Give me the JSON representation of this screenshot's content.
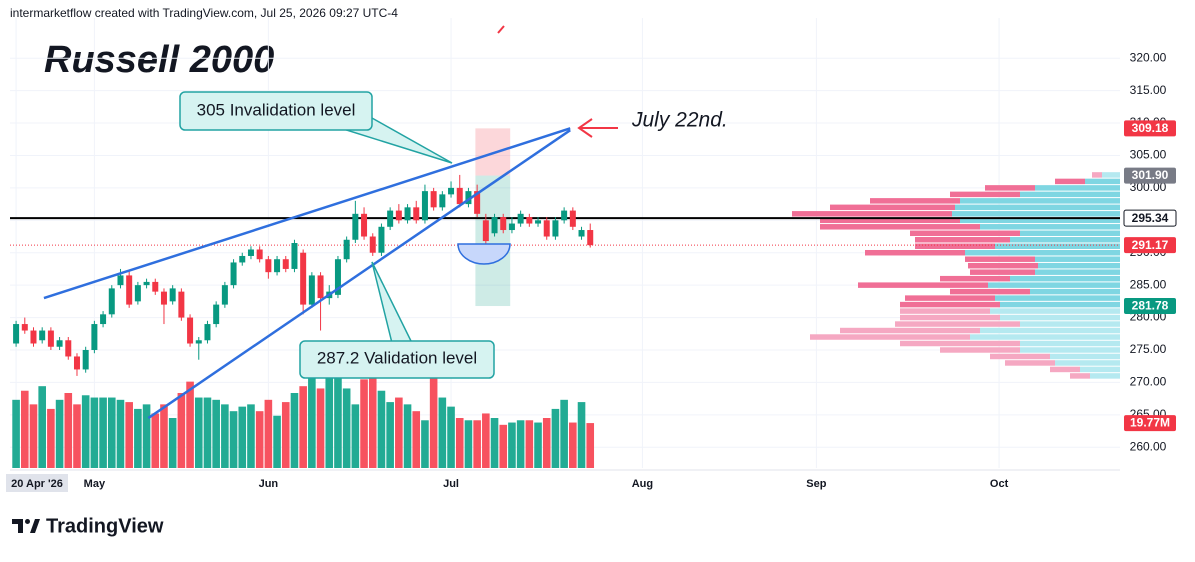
{
  "header": "intermarketflow created with TradingView.com, Jul 25, 2026 09:27 UTC-4",
  "footer": "TradingView",
  "chart_data": {
    "type": "candlestick",
    "title": "Russell 2000",
    "annotations": [
      "305 Invalidation level",
      "287.2 Validation level",
      "July 22nd."
    ],
    "xlim": [
      -0.7,
      126.9
    ],
    "xticks": [
      {
        "value": 0,
        "label": "20 Apr '26"
      },
      {
        "value": 9,
        "label": "May"
      },
      {
        "value": 29,
        "label": "Jun"
      },
      {
        "value": 50,
        "label": "Jul"
      },
      {
        "value": 72,
        "label": "Aug"
      },
      {
        "value": 92,
        "label": "Sep"
      },
      {
        "value": 113,
        "label": "Oct"
      }
    ],
    "ylim": [
      256.8,
      326.2
    ],
    "yticks": [
      {
        "value": 260,
        "label": "260.00"
      },
      {
        "value": 265,
        "label": "265.00"
      },
      {
        "value": 270,
        "label": "270.00"
      },
      {
        "value": 275,
        "label": "275.00"
      },
      {
        "value": 280,
        "label": "280.00"
      },
      {
        "value": 285,
        "label": "285.00"
      },
      {
        "value": 290,
        "label": "290.00"
      },
      {
        "value": 295,
        "label": "295.00"
      },
      {
        "value": 300,
        "label": "300.00"
      },
      {
        "value": 305,
        "label": "305.00"
      },
      {
        "value": 310,
        "label": "310.00"
      },
      {
        "value": 315,
        "label": "315.00"
      },
      {
        "value": 320,
        "label": "320.00"
      }
    ],
    "up_color": "#089981",
    "down_color": "#f23645",
    "ohlc": [
      [
        276,
        279.5,
        275.5,
        279
      ],
      [
        279,
        280,
        277.5,
        278
      ],
      [
        278,
        278.5,
        275.5,
        276
      ],
      [
        276.5,
        278.5,
        276,
        278
      ],
      [
        278,
        278.5,
        275,
        275.5
      ],
      [
        275.5,
        277,
        275,
        276.5
      ],
      [
        276.5,
        277,
        273.5,
        274
      ],
      [
        274,
        274.5,
        271,
        272
      ],
      [
        272,
        275.5,
        271.5,
        275
      ],
      [
        275,
        279.5,
        274.5,
        279
      ],
      [
        279,
        281,
        278.5,
        280.5
      ],
      [
        280.5,
        285,
        280,
        284.5
      ],
      [
        285,
        287.5,
        284.5,
        286.5
      ],
      [
        286.5,
        287.3,
        281.5,
        282
      ],
      [
        282.5,
        285.5,
        282,
        285
      ],
      [
        285,
        286,
        284.5,
        285.5
      ],
      [
        285.5,
        286,
        283.5,
        284
      ],
      [
        284,
        284.5,
        279,
        282
      ],
      [
        282.5,
        285,
        282,
        284.5
      ],
      [
        284,
        284.5,
        279.5,
        280
      ],
      [
        280,
        280.5,
        275.5,
        276
      ],
      [
        276,
        277,
        273.5,
        276.5
      ],
      [
        276.5,
        279.5,
        276,
        279
      ],
      [
        279,
        282.5,
        278.5,
        282
      ],
      [
        282,
        285.5,
        281.5,
        285
      ],
      [
        285,
        289,
        284.5,
        288.5
      ],
      [
        288.5,
        290,
        288,
        289.5
      ],
      [
        289.5,
        291,
        289,
        290.5
      ],
      [
        290.5,
        291,
        288.5,
        289
      ],
      [
        289,
        289.5,
        286,
        287
      ],
      [
        287,
        289.5,
        286.5,
        289
      ],
      [
        289,
        289.5,
        287,
        287.5
      ],
      [
        287.5,
        292,
        287,
        291.5
      ],
      [
        290,
        290.5,
        280.5,
        282
      ],
      [
        282,
        287,
        281.5,
        286.5
      ],
      [
        286.5,
        287,
        278,
        283
      ],
      [
        283,
        285,
        282,
        284
      ],
      [
        283.5,
        289.5,
        283,
        289
      ],
      [
        289,
        292.5,
        288.5,
        292
      ],
      [
        292,
        298,
        291.5,
        296
      ],
      [
        296,
        297,
        292,
        292.5
      ],
      [
        292.5,
        293,
        289.5,
        290
      ],
      [
        290,
        294.5,
        289.5,
        294
      ],
      [
        294,
        297,
        293.5,
        296.5
      ],
      [
        296.5,
        297.5,
        294.5,
        295
      ],
      [
        295,
        297.5,
        294.5,
        297
      ],
      [
        297,
        298,
        294.5,
        295
      ],
      [
        295,
        300.5,
        294.5,
        299.5
      ],
      [
        299.5,
        300,
        296.5,
        297
      ],
      [
        297,
        299.5,
        296.5,
        299
      ],
      [
        299,
        301,
        298.5,
        300
      ],
      [
        300,
        302,
        297,
        297.5
      ],
      [
        297.5,
        300,
        297,
        299.5
      ],
      [
        299.5,
        300.5,
        295.5,
        296
      ],
      [
        295,
        296,
        291.3,
        291.8
      ],
      [
        293,
        296,
        292.5,
        295.5
      ],
      [
        295.5,
        296,
        293,
        293.5
      ],
      [
        293.5,
        295.5,
        293,
        294.5
      ],
      [
        294.5,
        296.5,
        294,
        296
      ],
      [
        295.5,
        296,
        294,
        294.5
      ],
      [
        294.5,
        295.5,
        294,
        295
      ],
      [
        295,
        295.5,
        292,
        292.5
      ],
      [
        292.5,
        295.5,
        292,
        295
      ],
      [
        295,
        297,
        294.5,
        296.5
      ],
      [
        296.5,
        297,
        293.5,
        294
      ],
      [
        292.5,
        294,
        292,
        293.5
      ],
      [
        293.5,
        294.5,
        290.8,
        291.17
      ]
    ],
    "volume": [
      30,
      34,
      28,
      36,
      26,
      30,
      33,
      28,
      32,
      31,
      31,
      31,
      30,
      29,
      26,
      28,
      24,
      28,
      22,
      33,
      38,
      31,
      31,
      30,
      28,
      25,
      27,
      28,
      25,
      30,
      23,
      29,
      33,
      36,
      43,
      35,
      41,
      43,
      35,
      28,
      39,
      42,
      34,
      29,
      31,
      28,
      25,
      21,
      43,
      31,
      27,
      22,
      21,
      21,
      24,
      22,
      19,
      20,
      21,
      21,
      20,
      22,
      26,
      30,
      20,
      29,
      19.77
    ],
    "volume_ylim": [
      0,
      88
    ],
    "volume_up_color": "#22ab94",
    "volume_down_color": "#f7525f",
    "price_labels": [
      {
        "value": 309.18,
        "label": "309.18",
        "color": "#f23645"
      },
      {
        "value": 301.9,
        "label": "301.90",
        "color": "#787b86"
      },
      {
        "value": 295.34,
        "label": "295.34",
        "color": "#ffffff",
        "line": "solid",
        "line_color": "#000000"
      },
      {
        "value": 291.17,
        "label": "291.17",
        "color": "#f23645",
        "line": "dotted",
        "line_color": "#f23645"
      },
      {
        "value": 281.78,
        "label": "281.78",
        "color": "#089981"
      }
    ],
    "volume_label": {
      "value": 19.77,
      "label": "19.77M",
      "color": "#f23645"
    },
    "trendlines": [
      {
        "points": [
          [
            3.2,
            283
          ],
          [
            63.7,
            309.18
          ]
        ],
        "color": "#2f6fde"
      },
      {
        "points": [
          [
            15.2,
            264.5
          ],
          [
            63.7,
            308.9
          ]
        ],
        "color": "#2f6fde"
      }
    ],
    "position": {
      "x": [
        52.8,
        56.8
      ],
      "entry": 301.9,
      "stop": 309.18,
      "target": 281.78
    },
    "volume_profile": {
      "levels": [
        302,
        301,
        300,
        299,
        298,
        297,
        296,
        295,
        294,
        293,
        292,
        291,
        290,
        289,
        288,
        287,
        286,
        285,
        284,
        283,
        282,
        281,
        280,
        279,
        278,
        277,
        276,
        275,
        274,
        273,
        272,
        271
      ],
      "up": [
        18,
        35,
        85,
        100,
        160,
        165,
        168,
        160,
        140,
        100,
        110,
        125,
        155,
        85,
        82,
        85,
        110,
        132,
        90,
        125,
        120,
        130,
        120,
        100,
        140,
        150,
        100,
        100,
        70,
        65,
        40,
        30
      ],
      "down": [
        10,
        30,
        50,
        70,
        90,
        125,
        160,
        140,
        160,
        110,
        95,
        80,
        100,
        70,
        70,
        65,
        70,
        130,
        80,
        90,
        100,
        90,
        100,
        125,
        140,
        160,
        120,
        80,
        60,
        50,
        30,
        20
      ],
      "xlim": [
        0,
        330
      ],
      "colors": {
        "up": "#7fd6e2",
        "down": "#f06f96",
        "up_outside": "#b5e9f0",
        "down_outside": "#f5a8c2"
      }
    }
  }
}
